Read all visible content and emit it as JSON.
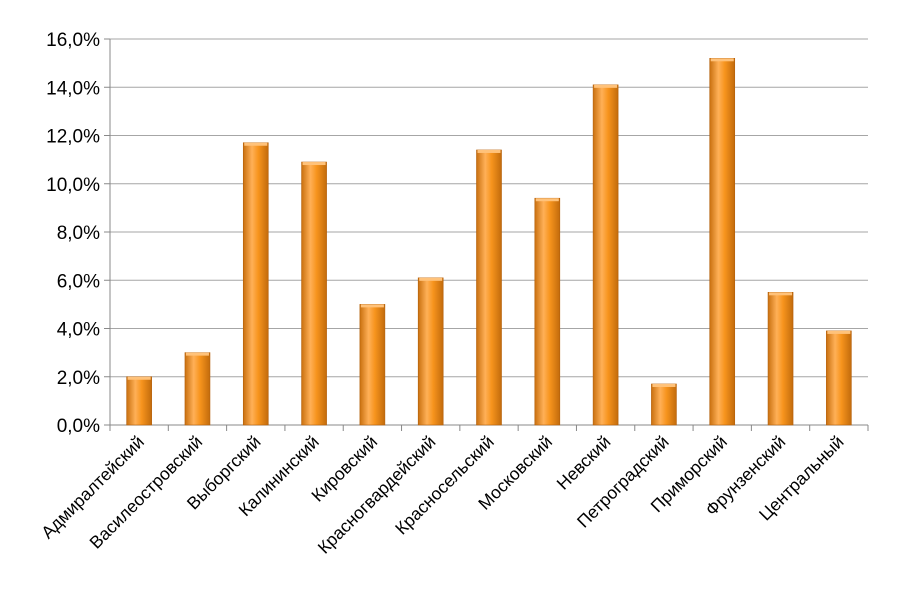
{
  "chart_data": {
    "type": "bar",
    "categories": [
      "Адмиралтейский",
      "Василеостровский",
      "Выборгский",
      "Калининский",
      "Кировский",
      "Красногвардейский",
      "Красносельский",
      "Московский",
      "Невский",
      "Петроградский",
      "Приморский",
      "Фрунзенский",
      "Центральный"
    ],
    "values": [
      2.0,
      3.0,
      11.7,
      10.9,
      5.0,
      6.1,
      11.4,
      9.4,
      14.1,
      1.7,
      15.2,
      5.5,
      3.9
    ],
    "value_unit": "%",
    "ylim": [
      0,
      16
    ],
    "yticks": [
      "0,0%",
      "2,0%",
      "4,0%",
      "6,0%",
      "8,0%",
      "10,0%",
      "12,0%",
      "14,0%",
      "16,0%"
    ],
    "grid": true,
    "legend": "none",
    "bar_color": "#f7941d",
    "bar_highlight": "#ffc27a",
    "bar_shadow": "#b45f0a",
    "grid_color": "#a6a6a6",
    "title": "",
    "xlabel": "",
    "ylabel": ""
  }
}
